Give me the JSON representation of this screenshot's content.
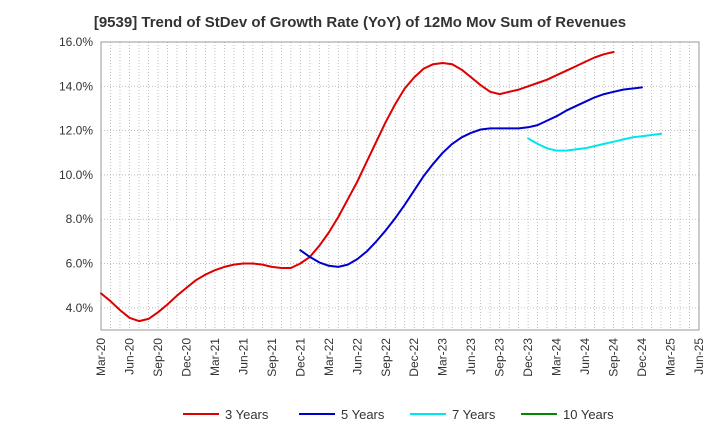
{
  "chart_data": {
    "type": "line",
    "title": "[9539]  Trend of StDev of Growth Rate (YoY) of 12Mo Mov Sum of Revenues",
    "xlabel": "",
    "ylabel": "",
    "ylim": [
      3.0,
      16.0
    ],
    "yticks": [
      4.0,
      6.0,
      8.0,
      10.0,
      12.0,
      14.0,
      16.0
    ],
    "ytick_labels": [
      "4.0%",
      "6.0%",
      "8.0%",
      "10.0%",
      "12.0%",
      "14.0%",
      "16.0%"
    ],
    "x_tick_labels": [
      "Mar-20",
      "Jun-20",
      "Sep-20",
      "Dec-20",
      "Mar-21",
      "Jun-21",
      "Sep-21",
      "Dec-21",
      "Mar-22",
      "Jun-22",
      "Sep-22",
      "Dec-22",
      "Mar-23",
      "Jun-23",
      "Sep-23",
      "Dec-23",
      "Mar-24",
      "Jun-24",
      "Sep-24",
      "Dec-24",
      "Mar-25",
      "Jun-25"
    ],
    "grid": true,
    "legend_position": "bottom",
    "series": [
      {
        "name": "3 Years",
        "color": "#dd0000",
        "start_index": 0,
        "values": [
          4.65,
          4.3,
          3.9,
          3.55,
          3.4,
          3.5,
          3.8,
          4.15,
          4.55,
          4.9,
          5.25,
          5.5,
          5.7,
          5.85,
          5.95,
          6.0,
          6.0,
          5.95,
          5.85,
          5.8,
          5.8,
          6.0,
          6.3,
          6.8,
          7.4,
          8.1,
          8.9,
          9.7,
          10.6,
          11.5,
          12.4,
          13.2,
          13.9,
          14.4,
          14.8,
          15.0,
          15.05,
          15.0,
          14.75,
          14.4,
          14.05,
          13.75,
          13.65,
          13.75,
          13.85,
          14.0,
          14.15,
          14.3,
          14.5,
          14.7,
          14.9,
          15.1,
          15.3,
          15.45,
          15.55
        ]
      },
      {
        "name": "5 Years",
        "color": "#0000cc",
        "start_index": 21,
        "values": [
          6.6,
          6.3,
          6.05,
          5.9,
          5.85,
          5.95,
          6.2,
          6.55,
          7.0,
          7.5,
          8.05,
          8.65,
          9.3,
          9.95,
          10.5,
          11.0,
          11.4,
          11.7,
          11.9,
          12.05,
          12.1,
          12.1,
          12.1,
          12.1,
          12.15,
          12.25,
          12.45,
          12.65,
          12.9,
          13.1,
          13.3,
          13.5,
          13.65,
          13.75,
          13.85,
          13.9,
          13.95
        ]
      },
      {
        "name": "7 Years",
        "color": "#00e5ee",
        "start_index": 45,
        "values": [
          11.65,
          11.4,
          11.2,
          11.1,
          11.1,
          11.15,
          11.2,
          11.3,
          11.4,
          11.5,
          11.6,
          11.7,
          11.75,
          11.8,
          11.85
        ]
      },
      {
        "name": "10 Years",
        "color": "#008800",
        "start_index": 0,
        "values": []
      }
    ]
  }
}
